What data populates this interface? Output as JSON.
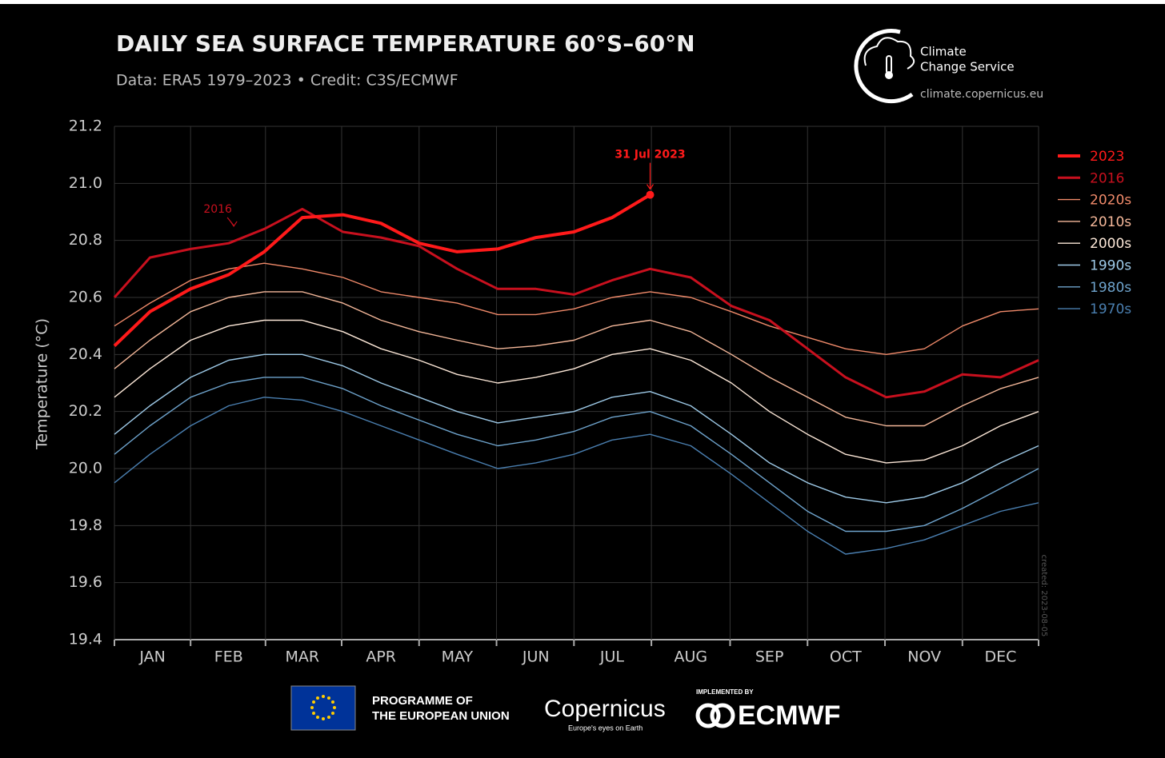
{
  "chart_data": {
    "type": "line",
    "title": "DAILY SEA SURFACE TEMPERATURE 60°S–60°N",
    "subtitle": "Data: ERA5 1979–2023 • Credit: C3S/ECMWF",
    "ylabel": "Temperature (°C)",
    "x": [
      1,
      15,
      31,
      46,
      60,
      75,
      91,
      106,
      121,
      136,
      152,
      167,
      182,
      197,
      212,
      228,
      244,
      259,
      274,
      289,
      305,
      320,
      335,
      350,
      365
    ],
    "xlim": [
      1,
      365
    ],
    "xticks": [
      {
        "value": 16,
        "label": "JAN"
      },
      {
        "value": 46,
        "label": "FEB"
      },
      {
        "value": 75,
        "label": "MAR"
      },
      {
        "value": 106,
        "label": "APR"
      },
      {
        "value": 136,
        "label": "MAY"
      },
      {
        "value": 167,
        "label": "JUN"
      },
      {
        "value": 197,
        "label": "JUL"
      },
      {
        "value": 228,
        "label": "AUG"
      },
      {
        "value": 259,
        "label": "SEP"
      },
      {
        "value": 289,
        "label": "OCT"
      },
      {
        "value": 320,
        "label": "NOV"
      },
      {
        "value": 350,
        "label": "DEC"
      }
    ],
    "ylim": [
      19.4,
      21.2
    ],
    "yticks": [
      19.4,
      19.6,
      19.8,
      {
        "value": 20.0,
        "label": "20.0"
      },
      20.2,
      20.4,
      20.6,
      20.8,
      {
        "value": 21.0,
        "label": "21.0"
      },
      21.2
    ],
    "grid": true,
    "legend": "right",
    "series": [
      {
        "name": "2023",
        "color": "#ff1a1a",
        "values": [
          20.43,
          20.55,
          20.63,
          20.68,
          20.76,
          20.88,
          20.89,
          20.86,
          20.79,
          20.76,
          20.77,
          20.81,
          20.83,
          20.88,
          20.96,
          null,
          null,
          null,
          null,
          null,
          null,
          null,
          null,
          null,
          null
        ]
      },
      {
        "name": "2016",
        "color": "#c8101e",
        "values": [
          20.6,
          20.74,
          20.77,
          20.79,
          20.84,
          20.91,
          20.83,
          20.81,
          20.78,
          20.7,
          20.63,
          20.63,
          20.61,
          20.66,
          20.7,
          20.67,
          20.57,
          20.52,
          20.42,
          20.32,
          20.25,
          20.27,
          20.33,
          20.32,
          20.38
        ]
      },
      {
        "name": "2020s",
        "color": "#f08a6a",
        "values": [
          20.5,
          20.58,
          20.66,
          20.7,
          20.72,
          20.7,
          20.67,
          20.62,
          20.6,
          20.58,
          20.54,
          20.54,
          20.56,
          20.6,
          20.62,
          20.6,
          20.55,
          20.5,
          20.46,
          20.42,
          20.4,
          20.42,
          20.5,
          20.55,
          20.56
        ]
      },
      {
        "name": "2010s",
        "color": "#f5b89a",
        "values": [
          20.35,
          20.45,
          20.55,
          20.6,
          20.62,
          20.62,
          20.58,
          20.52,
          20.48,
          20.45,
          20.42,
          20.43,
          20.45,
          20.5,
          20.52,
          20.48,
          20.4,
          20.32,
          20.25,
          20.18,
          20.15,
          20.15,
          20.22,
          20.28,
          20.32
        ]
      },
      {
        "name": "2000s",
        "color": "#fde8d8",
        "values": [
          20.25,
          20.35,
          20.45,
          20.5,
          20.52,
          20.52,
          20.48,
          20.42,
          20.38,
          20.33,
          20.3,
          20.32,
          20.35,
          20.4,
          20.42,
          20.38,
          20.3,
          20.2,
          20.12,
          20.05,
          20.02,
          20.03,
          20.08,
          20.15,
          20.2
        ]
      },
      {
        "name": "1990s",
        "color": "#9ecae8",
        "values": [
          20.12,
          20.22,
          20.32,
          20.38,
          20.4,
          20.4,
          20.36,
          20.3,
          20.25,
          20.2,
          20.16,
          20.18,
          20.2,
          20.25,
          20.27,
          20.22,
          20.12,
          20.02,
          19.95,
          19.9,
          19.88,
          19.9,
          19.95,
          20.02,
          20.08
        ]
      },
      {
        "name": "1980s",
        "color": "#6ea3cc",
        "values": [
          20.05,
          20.15,
          20.25,
          20.3,
          20.32,
          20.32,
          20.28,
          20.22,
          20.17,
          20.12,
          20.08,
          20.1,
          20.13,
          20.18,
          20.2,
          20.15,
          20.05,
          19.95,
          19.85,
          19.78,
          19.78,
          19.8,
          19.86,
          19.93,
          20.0
        ]
      },
      {
        "name": "1970s",
        "color": "#4a7fb0",
        "values": [
          19.95,
          20.05,
          20.15,
          20.22,
          20.25,
          20.24,
          20.2,
          20.15,
          20.1,
          20.05,
          20.0,
          20.02,
          20.05,
          20.1,
          20.12,
          20.08,
          19.98,
          19.88,
          19.78,
          19.7,
          19.72,
          19.75,
          19.8,
          19.85,
          19.88
        ]
      }
    ],
    "annotations": [
      {
        "text": "31 Jul 2023",
        "x": 212,
        "y": 20.96,
        "color": "#ff1a1a"
      },
      {
        "text": "2016",
        "x": 48,
        "y": 20.83,
        "color": "#c8101e"
      }
    ],
    "created": "created: 2023-08-05"
  },
  "header": {
    "brand_line1": "Climate",
    "brand_line2": "Change Service",
    "url": "climate.copernicus.eu"
  },
  "footer": {
    "eu_line1": "PROGRAMME OF",
    "eu_line2": "THE EUROPEAN UNION",
    "copernicus": "Copernicus",
    "copernicus_tagline": "Europe's eyes on Earth",
    "implemented_by": "IMPLEMENTED BY",
    "ecmwf": "ECMWF"
  }
}
